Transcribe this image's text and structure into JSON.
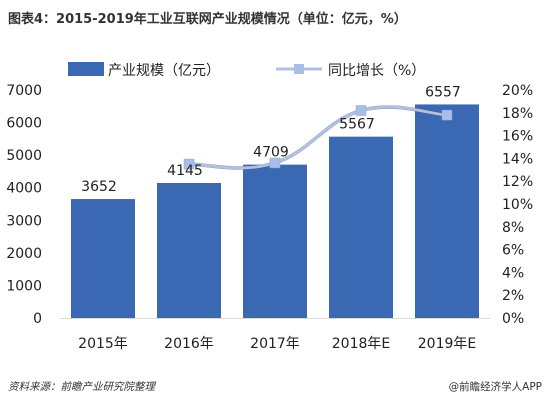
{
  "title": "图表4：2015-2019年工业互联网产业规模情况（单位：亿元，%）",
  "footer": {
    "source": "资料来源：前瞻产业研究院整理",
    "brand": "@前瞻经济学人APP"
  },
  "colors": {
    "bar": "#3a68b2",
    "line": "#b0c0e0",
    "marker": "#a9bde9",
    "grid": "#d9d9d9"
  },
  "chart_data": {
    "type": "bar",
    "categories": [
      "2015年",
      "2016年",
      "2017年",
      "2018年E",
      "2019年E"
    ],
    "series": [
      {
        "name": "产业规模（亿元）",
        "type": "bar",
        "axis": "left",
        "values": [
          3652,
          4145,
          4709,
          5567,
          6557
        ],
        "labels": [
          "3652",
          "4145",
          "4709",
          "5567",
          "6557"
        ]
      },
      {
        "name": "同比增长（%）",
        "type": "line",
        "axis": "right",
        "values": [
          null,
          13.5,
          13.6,
          18.2,
          17.8
        ]
      }
    ],
    "y_left": {
      "min": 0,
      "max": 7000,
      "step": 1000,
      "ticks": [
        "0",
        "1000",
        "2000",
        "3000",
        "4000",
        "5000",
        "6000",
        "7000"
      ]
    },
    "y_right": {
      "min": 0,
      "max": 20,
      "step": 2,
      "ticks": [
        "0%",
        "2%",
        "4%",
        "6%",
        "8%",
        "10%",
        "12%",
        "14%",
        "16%",
        "18%",
        "20%"
      ]
    },
    "legend_position": "top",
    "grid": false
  }
}
